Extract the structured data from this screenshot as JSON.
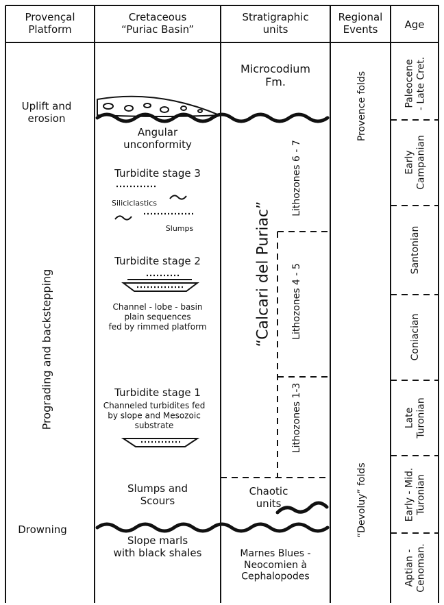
{
  "headers": {
    "platform": [
      "Provençal",
      "Platform"
    ],
    "basin": [
      "Cretaceous",
      "“Puriac Basin”"
    ],
    "units": [
      "Stratigraphic",
      "units"
    ],
    "events": [
      "Regional",
      "Events"
    ],
    "age": [
      "Age"
    ]
  },
  "platform": {
    "uplift": [
      "Uplift and",
      "erosion"
    ],
    "prograding": "Prograding and backstepping",
    "drowning": "Drowning"
  },
  "basin": {
    "unconformity": [
      "Angular",
      "unconformity"
    ],
    "stage3": "Turbidite stage 3",
    "siliciclastics": "Siliciclastics",
    "slumps": "Slumps",
    "stage2": "Turbidite stage 2",
    "stage2_note": [
      "Channel - lobe - basin",
      "plain sequences",
      "fed by rimmed platform"
    ],
    "stage1": "Turbidite stage 1",
    "stage1_note": [
      "Channeled turbidites fed",
      "by slope and Mesozoic",
      "substrate"
    ],
    "scours": [
      "Slumps and",
      "Scours"
    ],
    "marls": [
      "Slope marls",
      "with black shales"
    ]
  },
  "units": {
    "microcodium": [
      "Microcodium",
      "Fm."
    ],
    "calcari": "“Calcari del Puriac”",
    "lz67": "Lithozones 6 - 7",
    "lz45": "Lithozones 4 - 5",
    "lz13": "Lithozones 1-3",
    "chaotic": [
      "Chaotic",
      "units"
    ],
    "marnes": [
      "Marnes Blues -",
      "Neocomien à",
      "Cephalopodes"
    ]
  },
  "events": {
    "provence": "Provence folds",
    "devoluy": "“Devoluy” folds"
  },
  "ages": [
    [
      "Paleocene",
      "- Late Cret."
    ],
    [
      "Early",
      "Campanian"
    ],
    [
      "Santonian"
    ],
    [
      "Coniacian"
    ],
    [
      "Late",
      "Turonian"
    ],
    [
      "Early - Mid.",
      "Turonian"
    ],
    [
      "Aptian -",
      "Cenoman."
    ]
  ]
}
